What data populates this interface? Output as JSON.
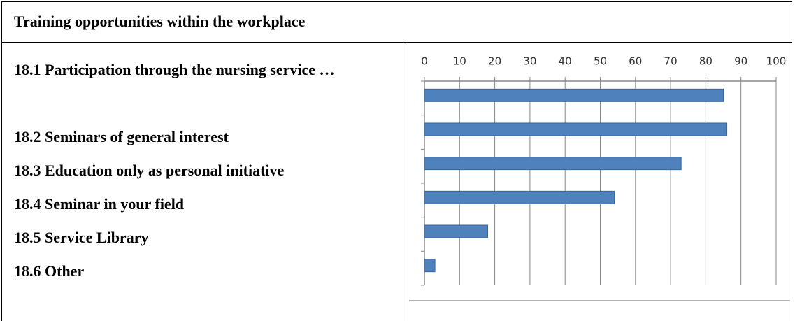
{
  "chart_data": {
    "type": "bar",
    "orientation": "horizontal",
    "title": "Training opportunities within the workplace",
    "categories": [
      "18.1 Participation through the nursing service …",
      "18.2 Seminars of general interest",
      "18.3 Education only as personal initiative",
      "18.4 Seminar in your field",
      "18.5 Service Library",
      "18.6 Other"
    ],
    "values": [
      85,
      86,
      73,
      54,
      18,
      3
    ],
    "color": "#4f81bd",
    "xlim": [
      0,
      100
    ],
    "xticks": [
      0,
      10,
      20,
      30,
      40,
      50,
      60,
      70,
      80,
      90,
      100
    ],
    "grid": true
  }
}
